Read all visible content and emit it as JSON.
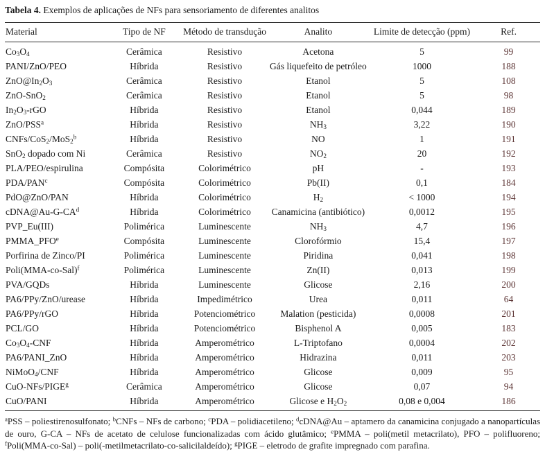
{
  "caption": {
    "label": "Tabela 4.",
    "text": " Exemplos de aplicações de NFs para sensoriamento de diferentes analitos"
  },
  "colors": {
    "text": "#1b1b1b",
    "rule": "#2a2a2a",
    "ref_link": "#5c3434"
  },
  "table": {
    "columns": [
      "Material",
      "Tipo de NF",
      "Método de transdução",
      "Analito",
      "Limite de detecção (ppm)",
      "Ref."
    ],
    "rows": [
      [
        "Co~3~O~4~",
        "Cerâmica",
        "Resistivo",
        "Acetona",
        "5",
        "99"
      ],
      [
        "PANI/ZnO/PEO",
        "Híbrida",
        "Resistivo",
        "Gás liquefeito de petróleo",
        "1000",
        "188"
      ],
      [
        "ZnO@In~2~O~3~",
        "Cerâmica",
        "Resistivo",
        "Etanol",
        "5",
        "108"
      ],
      [
        "ZnO-SnO~2~",
        "Cerâmica",
        "Resistivo",
        "Etanol",
        "5",
        "98"
      ],
      [
        "In~2~O~3~-rGO",
        "Híbrida",
        "Resistivo",
        "Etanol",
        "0,044",
        "189"
      ],
      [
        "ZnO/PSS^a^",
        "Híbrida",
        "Resistivo",
        "NH~3~",
        "3,22",
        "190"
      ],
      [
        "CNFs/CoS~2~/MoS~2~^b^",
        "Híbrida",
        "Resistivo",
        "NO",
        "1",
        "191"
      ],
      [
        "SnO~2~ dopado com Ni",
        "Cerâmica",
        "Resistivo",
        "NO~2~",
        "20",
        "192"
      ],
      [
        "PLA/PEO/espirulina",
        "Compósita",
        "Colorimétrico",
        "pH",
        "-",
        "193"
      ],
      [
        "PDA/PAN^c^",
        "Compósita",
        "Colorimétrico",
        "Pb(II)",
        "0,1",
        "184"
      ],
      [
        "PdO@ZnO/PAN",
        "Híbrida",
        "Colorimétrico",
        "H~2~",
        "< 1000",
        "194"
      ],
      [
        "cDNA@Au-G-CA^d^",
        "Híbrida",
        "Colorimétrico",
        "Canamicina (antibiótico)",
        "0,0012",
        "195"
      ],
      [
        "PVP_Eu(III)",
        "Polimérica",
        "Luminescente",
        "NH~3~",
        "4,7",
        "196"
      ],
      [
        "PMMA_PFO^e^",
        "Compósita",
        "Luminescente",
        "Clorofórmio",
        "15,4",
        "197"
      ],
      [
        "Porfirina de Zinco/PI",
        "Polimérica",
        "Luminescente",
        "Piridina",
        "0,041",
        "198"
      ],
      [
        "Poli(MMA-co-Sal)^f^",
        "Polimérica",
        "Luminescente",
        "Zn(II)",
        "0,013",
        "199"
      ],
      [
        "PVA/GQDs",
        "Híbrida",
        "Luminescente",
        "Glicose",
        "2,16",
        "200"
      ],
      [
        "PA6/PPy/ZnO/urease",
        "Híbrida",
        "Impedimétrico",
        "Urea",
        "0,011",
        "64"
      ],
      [
        "PA6/PPy/rGO",
        "Híbrida",
        "Potenciométrico",
        "Malation (pesticida)",
        "0,0008",
        "201"
      ],
      [
        "PCL/GO",
        "Híbrida",
        "Potenciométrico",
        "Bisphenol A",
        "0,005",
        "183"
      ],
      [
        "Co~3~O~4~-CNF",
        "Híbrida",
        "Amperométrico",
        "L-Triptofano",
        "0,0004",
        "202"
      ],
      [
        "PA6/PANI_ZnO",
        "Híbrida",
        "Amperométrico",
        "Hidrazina",
        "0,011",
        "203"
      ],
      [
        "NiMoO~4~/CNF",
        "Híbrida",
        "Amperométrico",
        "Glicose",
        "0,009",
        "95"
      ],
      [
        "CuO-NFs/PIGE^g^",
        "Cerâmica",
        "Amperométrico",
        "Glicose",
        "0,07",
        "94"
      ],
      [
        "CuO/PANI",
        "Híbrida",
        "Amperométrico",
        "Glicose e H~2~O~2~",
        "0,08 e 0,004",
        "186"
      ]
    ]
  },
  "footnote": "^a^PSS – poliestirenosulfonato; ^b^CNFs – NFs de carbono; ^c^PDA – polidiacetileno; ^d^cDNA@Au – aptamero da canamicina conjugado a nanopartículas de ouro, G-CA – NFs de acetato de celulose funcionalizadas com ácido glutâmico; ^e^PMMA – poli(metil metacrilato), PFO – polifluoreno; ^f^Poli(MMA-co-Sal) – poli(-metilmetacrilato-co-salicilaldeído); ^g^PIGE – eletrodo de grafite impregnado com parafina."
}
